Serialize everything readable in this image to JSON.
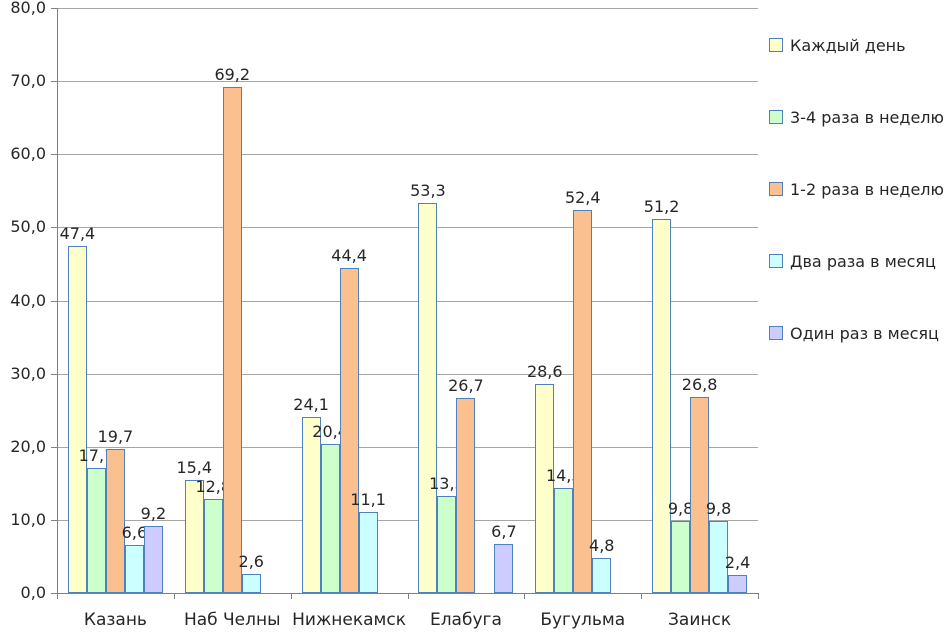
{
  "chart_data": {
    "type": "bar",
    "title": "",
    "xlabel": "",
    "ylabel": "",
    "categories": [
      "Казань",
      "Наб Челны",
      "Нижнекамск",
      "Елабуга",
      "Бугульма",
      "Заинск"
    ],
    "series": [
      {
        "name": "Каждый день",
        "color": "#FFFFCC",
        "values": [
          47.4,
          15.4,
          24.1,
          53.3,
          28.6,
          51.2
        ]
      },
      {
        "name": "3-4 раза в неделю",
        "color": "#CCFFCC",
        "values": [
          17.1,
          12.8,
          20.4,
          13.3,
          14.3,
          9.8
        ]
      },
      {
        "name": "1-2 раза в неделю",
        "color": "#FAC090",
        "values": [
          19.7,
          69.2,
          44.4,
          26.7,
          52.4,
          26.8
        ]
      },
      {
        "name": "Два раза в месяц",
        "color": "#CCFFFF",
        "values": [
          6.6,
          2.6,
          11.1,
          null,
          4.8,
          9.8
        ]
      },
      {
        "name": "Один раз в месяц",
        "color": "#CCCCFF",
        "values": [
          9.2,
          null,
          null,
          6.7,
          null,
          2.4
        ]
      }
    ],
    "y_axis": {
      "min": 0,
      "max": 80,
      "step": 10,
      "tick_labels": [
        "80,0",
        "70,0",
        "60,0",
        "50,0",
        "40,0",
        "30,0",
        "20,0",
        "10,0",
        "0,0"
      ]
    },
    "grid": true,
    "legend_position": "right",
    "data_labels_shown": true,
    "decimal_separator": ",",
    "colors": {
      "bar_border": "#4F81BD",
      "gridline": "#A6A6A6",
      "axis": "#808080",
      "text": "#262626",
      "background": "#FFFFFF"
    }
  }
}
